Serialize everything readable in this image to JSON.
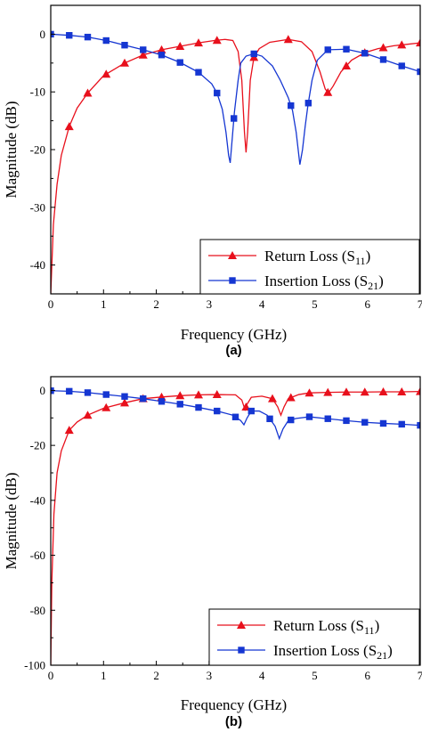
{
  "colors": {
    "return_loss": "#e8101c",
    "insertion_loss": "#1536d2",
    "axis": "#000000"
  },
  "chart_data": [
    {
      "panel_label": "(a)",
      "type": "line",
      "xlabel": "Frequency (GHz)",
      "ylabel": "Magnitude (dB)",
      "xlim": [
        0,
        7
      ],
      "ylim": [
        -45,
        5
      ],
      "xticks": [
        0,
        1,
        2,
        3,
        4,
        5,
        6,
        7
      ],
      "yticks": [
        -40,
        -30,
        -20,
        -10,
        0
      ],
      "legend_position": "bottom-right",
      "series": [
        {
          "name": "Return Loss (S11)",
          "name_main": "Return Loss (S",
          "name_sub": "11",
          "name_end": ")",
          "marker": "triangle",
          "color": "#e8101c",
          "points": [
            [
              0,
              -45
            ],
            [
              0.05,
              -33
            ],
            [
              0.12,
              -26
            ],
            [
              0.2,
              -21
            ],
            [
              0.35,
              -16
            ],
            [
              0.5,
              -12.8
            ],
            [
              0.7,
              -10.2
            ],
            [
              1.0,
              -7.2
            ],
            [
              1.4,
              -5
            ],
            [
              1.75,
              -3.6
            ],
            [
              2.1,
              -2.7
            ],
            [
              2.45,
              -2.1
            ],
            [
              2.8,
              -1.5
            ],
            [
              3.1,
              -1.1
            ],
            [
              3.3,
              -0.9
            ],
            [
              3.45,
              -1.1
            ],
            [
              3.55,
              -3
            ],
            [
              3.62,
              -8
            ],
            [
              3.67,
              -17
            ],
            [
              3.7,
              -20.5
            ],
            [
              3.73,
              -17
            ],
            [
              3.78,
              -8
            ],
            [
              3.85,
              -4
            ],
            [
              3.95,
              -2.5
            ],
            [
              4.15,
              -1.4
            ],
            [
              4.5,
              -0.9
            ],
            [
              4.75,
              -1.3
            ],
            [
              4.95,
              -3
            ],
            [
              5.1,
              -6.5
            ],
            [
              5.2,
              -9.5
            ],
            [
              5.26,
              -10.2
            ],
            [
              5.35,
              -9
            ],
            [
              5.5,
              -6.5
            ],
            [
              5.7,
              -4.5
            ],
            [
              5.95,
              -3.2
            ],
            [
              6.2,
              -2.5
            ],
            [
              6.5,
              -2
            ],
            [
              6.8,
              -1.7
            ],
            [
              7.0,
              -1.5
            ]
          ],
          "marker_x": [
            0.35,
            0.7,
            1.05,
            1.4,
            1.75,
            2.1,
            2.45,
            2.8,
            3.15,
            3.85,
            4.5,
            5.25,
            5.6,
            5.95,
            6.3,
            6.65,
            7.0
          ]
        },
        {
          "name": "Insertion Loss (S21)",
          "name_main": "Insertion Loss (S",
          "name_sub": "21",
          "name_end": ")",
          "marker": "square",
          "color": "#1536d2",
          "points": [
            [
              0,
              0
            ],
            [
              0.35,
              -0.2
            ],
            [
              0.7,
              -0.5
            ],
            [
              1.05,
              -1.1
            ],
            [
              1.4,
              -1.9
            ],
            [
              1.75,
              -2.7
            ],
            [
              2.1,
              -3.6
            ],
            [
              2.45,
              -4.9
            ],
            [
              2.8,
              -6.6
            ],
            [
              3.05,
              -8.6
            ],
            [
              3.15,
              -10.2
            ],
            [
              3.25,
              -13
            ],
            [
              3.32,
              -17
            ],
            [
              3.37,
              -21
            ],
            [
              3.4,
              -22.3
            ],
            [
              3.43,
              -19
            ],
            [
              3.48,
              -13.5
            ],
            [
              3.55,
              -8
            ],
            [
              3.6,
              -5
            ],
            [
              3.7,
              -3.8
            ],
            [
              3.85,
              -3.4
            ],
            [
              4.0,
              -3.8
            ],
            [
              4.2,
              -5.5
            ],
            [
              4.35,
              -8
            ],
            [
              4.5,
              -11
            ],
            [
              4.58,
              -13.2
            ],
            [
              4.65,
              -17
            ],
            [
              4.72,
              -22.6
            ],
            [
              4.77,
              -20
            ],
            [
              4.82,
              -16
            ],
            [
              4.87,
              -12.5
            ],
            [
              4.95,
              -8
            ],
            [
              5.05,
              -4.5
            ],
            [
              5.25,
              -2.7
            ],
            [
              5.6,
              -2.6
            ],
            [
              5.95,
              -3.3
            ],
            [
              6.3,
              -4.4
            ],
            [
              6.65,
              -5.5
            ],
            [
              7.0,
              -6.5
            ]
          ],
          "marker_x": [
            0,
            0.35,
            0.7,
            1.05,
            1.4,
            1.75,
            2.1,
            2.45,
            2.8,
            3.15,
            3.47,
            3.85,
            4.55,
            4.88,
            5.25,
            5.6,
            5.95,
            6.3,
            6.65,
            7.0
          ]
        }
      ]
    },
    {
      "panel_label": "(b)",
      "type": "line",
      "xlabel": "Frequency (GHz)",
      "ylabel": "Magnitude (dB)",
      "xlim": [
        0,
        7
      ],
      "ylim": [
        -100,
        5
      ],
      "xticks": [
        0,
        1,
        2,
        3,
        4,
        5,
        6,
        7
      ],
      "yticks": [
        -100,
        -80,
        -60,
        -40,
        -20,
        0
      ],
      "legend_position": "bottom-right",
      "series": [
        {
          "name": "Return Loss (S11)",
          "name_main": "Return Loss (S",
          "name_sub": "11",
          "name_end": ")",
          "marker": "triangle",
          "color": "#e8101c",
          "points": [
            [
              0,
              -100
            ],
            [
              0.02,
              -70
            ],
            [
              0.06,
              -45
            ],
            [
              0.12,
              -30
            ],
            [
              0.2,
              -22
            ],
            [
              0.35,
              -14.5
            ],
            [
              0.5,
              -11.5
            ],
            [
              0.7,
              -9
            ],
            [
              1.0,
              -6.5
            ],
            [
              1.4,
              -4.5
            ],
            [
              1.75,
              -3
            ],
            [
              2.1,
              -2.4
            ],
            [
              2.45,
              -1.9
            ],
            [
              2.8,
              -1.6
            ],
            [
              3.15,
              -1.5
            ],
            [
              3.5,
              -1.6
            ],
            [
              3.62,
              -3.5
            ],
            [
              3.68,
              -7
            ],
            [
              3.72,
              -5
            ],
            [
              3.8,
              -2.5
            ],
            [
              4.0,
              -2.1
            ],
            [
              4.2,
              -3
            ],
            [
              4.3,
              -6
            ],
            [
              4.36,
              -9
            ],
            [
              4.42,
              -6
            ],
            [
              4.5,
              -3
            ],
            [
              4.7,
              -1.5
            ],
            [
              4.9,
              -0.9
            ],
            [
              5.25,
              -0.7
            ],
            [
              5.6,
              -0.6
            ],
            [
              5.95,
              -0.6
            ],
            [
              6.3,
              -0.5
            ],
            [
              6.65,
              -0.5
            ],
            [
              7.0,
              -0.4
            ]
          ],
          "marker_x": [
            0.35,
            0.7,
            1.05,
            1.4,
            1.75,
            2.1,
            2.45,
            2.8,
            3.15,
            3.7,
            4.2,
            4.55,
            4.9,
            5.25,
            5.6,
            5.95,
            6.3,
            6.65,
            7.0
          ]
        },
        {
          "name": "Insertion Loss (S21)",
          "name_main": "Insertion Loss (S",
          "name_sub": "21",
          "name_end": ")",
          "marker": "square",
          "color": "#1536d2",
          "points": [
            [
              0,
              -0.1
            ],
            [
              0.35,
              -0.3
            ],
            [
              0.7,
              -0.8
            ],
            [
              1.05,
              -1.5
            ],
            [
              1.4,
              -2.2
            ],
            [
              1.75,
              -3
            ],
            [
              2.1,
              -4
            ],
            [
              2.45,
              -5
            ],
            [
              2.8,
              -6.2
            ],
            [
              3.15,
              -7.5
            ],
            [
              3.45,
              -9
            ],
            [
              3.6,
              -11
            ],
            [
              3.66,
              -12.5
            ],
            [
              3.72,
              -10
            ],
            [
              3.8,
              -7.5
            ],
            [
              3.95,
              -7.5
            ],
            [
              4.1,
              -9
            ],
            [
              4.25,
              -13
            ],
            [
              4.33,
              -17.5
            ],
            [
              4.4,
              -14
            ],
            [
              4.5,
              -11
            ],
            [
              4.65,
              -10.2
            ],
            [
              4.9,
              -9.6
            ],
            [
              5.25,
              -10.3
            ],
            [
              5.6,
              -11
            ],
            [
              5.95,
              -11.6
            ],
            [
              6.3,
              -12
            ],
            [
              6.65,
              -12.3
            ],
            [
              7.0,
              -12.7
            ]
          ],
          "marker_x": [
            0,
            0.35,
            0.7,
            1.05,
            1.4,
            1.75,
            2.1,
            2.45,
            2.8,
            3.15,
            3.5,
            3.8,
            4.15,
            4.55,
            4.9,
            5.25,
            5.6,
            5.95,
            6.3,
            6.65,
            7.0
          ]
        }
      ]
    }
  ]
}
